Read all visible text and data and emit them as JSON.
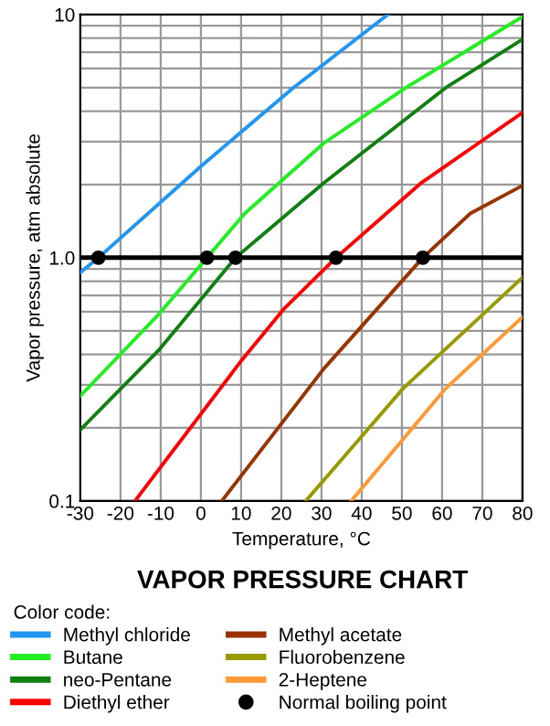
{
  "chart_data": {
    "type": "line",
    "title": "VAPOR PRESSURE CHART",
    "xlabel": "Temperature, °C",
    "ylabel": "Vapor pressure, atm absolute",
    "legend_title": "Color code:",
    "log": "y",
    "xlim": [
      -30,
      80
    ],
    "ylim": [
      0.1,
      10
    ],
    "xticks": [
      -30,
      -20,
      -10,
      0,
      10,
      20,
      30,
      40,
      50,
      60,
      70,
      80
    ],
    "yticks": [
      {
        "value": 0.1,
        "label": "0.1"
      },
      {
        "value": 0.2,
        "label": null
      },
      {
        "value": 0.3,
        "label": null
      },
      {
        "value": 0.4,
        "label": null
      },
      {
        "value": 0.5,
        "label": null
      },
      {
        "value": 0.6,
        "label": null
      },
      {
        "value": 0.7,
        "label": null
      },
      {
        "value": 0.8,
        "label": null
      },
      {
        "value": 0.9,
        "label": null
      },
      {
        "value": 1,
        "label": "1.0"
      },
      {
        "value": 2,
        "label": null
      },
      {
        "value": 3,
        "label": null
      },
      {
        "value": 4,
        "label": null
      },
      {
        "value": 5,
        "label": null
      },
      {
        "value": 6,
        "label": null
      },
      {
        "value": 7,
        "label": null
      },
      {
        "value": 8,
        "label": null
      },
      {
        "value": 9,
        "label": null
      },
      {
        "value": 10,
        "label": "10"
      }
    ],
    "grid": true,
    "legend": "bottom",
    "marker": "none",
    "line_style": "solid",
    "ref_lines": [
      {
        "axis": "y",
        "value": 1,
        "color": "#000000"
      }
    ],
    "series": [
      {
        "name": "Methyl chloride",
        "color": "#2196f3",
        "x": [
          -30,
          -25.5,
          0.3,
          23,
          46.5
        ],
        "values": [
          0.87,
          1.0,
          2.4,
          5.0,
          10
        ]
      },
      {
        "name": "Butane",
        "color": "#22ee22",
        "x": [
          -30,
          -10.3,
          1.5,
          10.9,
          30.6,
          51,
          80
        ],
        "values": [
          0.27,
          0.59,
          1.0,
          1.52,
          2.96,
          5.0,
          9.8
        ]
      },
      {
        "name": "neo-Pentane",
        "color": "#108010",
        "x": [
          -30,
          -10.3,
          8.6,
          30.6,
          60.9,
          80
        ],
        "values": [
          0.196,
          0.42,
          1.0,
          2.03,
          5.0,
          7.9
        ]
      },
      {
        "name": "Diethyl ether",
        "color": "#ff0000",
        "x": [
          -16.4,
          10.2,
          20.8,
          33.6,
          54.8,
          80
        ],
        "values": [
          0.1,
          0.38,
          0.62,
          1.0,
          2.03,
          3.95
        ]
      },
      {
        "name": "Methyl acetate",
        "color": "#993300",
        "x": [
          5.2,
          30.6,
          55.2,
          67,
          80
        ],
        "values": [
          0.1,
          0.35,
          1.0,
          1.52,
          1.98
        ]
      },
      {
        "name": "Fluorobenzene",
        "color": "#999900",
        "x": [
          26.1,
          50.3,
          80
        ],
        "values": [
          0.1,
          0.29,
          0.83
        ]
      },
      {
        "name": "2-Heptene",
        "color": "#ff9933",
        "x": [
          37.4,
          60.9,
          80
        ],
        "values": [
          0.1,
          0.29,
          0.57
        ]
      },
      {
        "name": "Normal boiling point",
        "type": "scatter",
        "marker": "circle",
        "color": "#000000",
        "x": [
          -25.5,
          1.5,
          8.6,
          33.6,
          55.2
        ],
        "values": [
          1.0,
          1.0,
          1.0,
          1.0,
          1.0
        ]
      }
    ]
  }
}
